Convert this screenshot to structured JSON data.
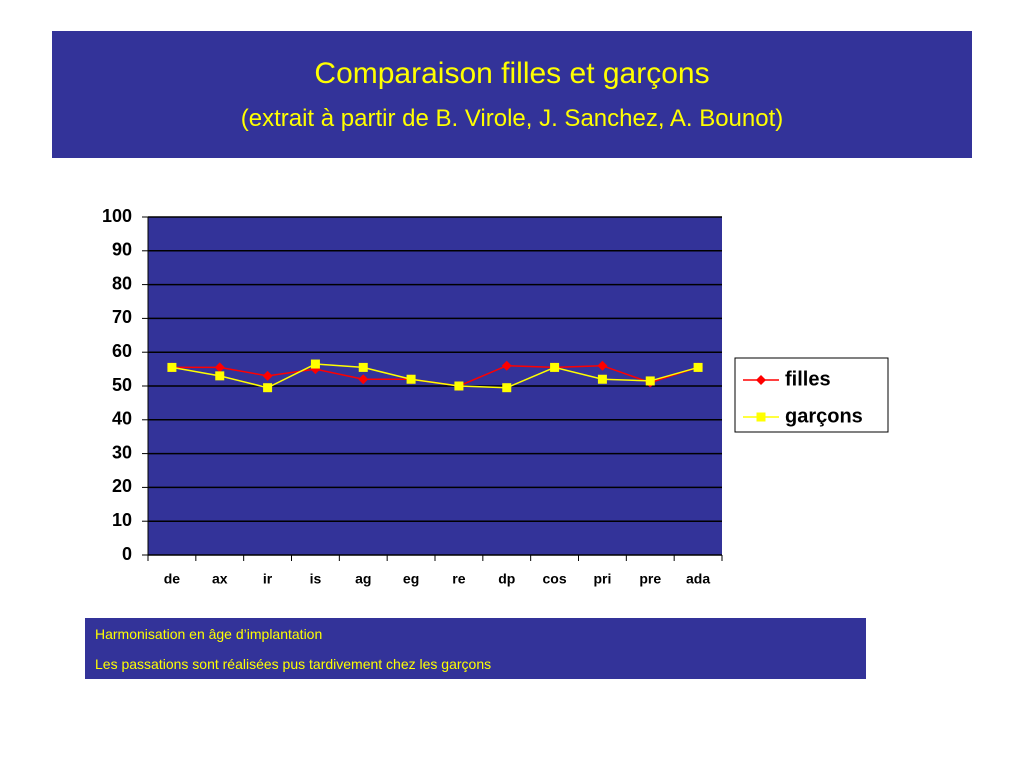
{
  "header": {
    "title": "Comparaison filles et garçons",
    "subtitle": "(extrait à partir de B. Virole, J. Sanchez, A. Bounot)"
  },
  "chart_data": {
    "type": "line",
    "categories": [
      "de",
      "ax",
      "ir",
      "is",
      "ag",
      "eg",
      "re",
      "dp",
      "cos",
      "pri",
      "pre",
      "ada"
    ],
    "series": [
      {
        "name": "filles",
        "color": "#ff0000",
        "marker": "diamond",
        "values": [
          55.5,
          55.5,
          53,
          55,
          52,
          52,
          50,
          56,
          55.5,
          56,
          51,
          55.5
        ]
      },
      {
        "name": "garçons",
        "color": "#ffff00",
        "marker": "square",
        "values": [
          55.5,
          53,
          49.5,
          56.5,
          55.5,
          52,
          50,
          49.5,
          55.5,
          52,
          51.5,
          55.5
        ]
      }
    ],
    "ylim": [
      0,
      100
    ],
    "yticks": [
      0,
      10,
      20,
      30,
      40,
      50,
      60,
      70,
      80,
      90,
      100
    ],
    "grid": true,
    "legend": "right"
  },
  "notes": [
    "Harmonisation en âge d’implantation",
    "Les passations sont réalisées pus tardivement chez les garçons"
  ]
}
